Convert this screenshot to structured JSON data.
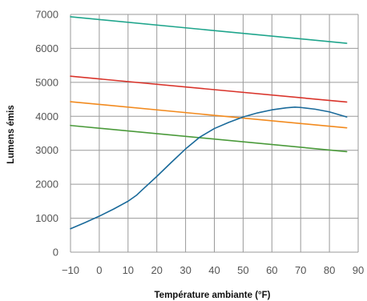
{
  "chart_data": {
    "type": "line",
    "xlabel": "Température ambiante (°F)",
    "ylabel": "Lumens émis",
    "xlim": [
      -10,
      90
    ],
    "ylim": [
      0,
      7000
    ],
    "x_ticks": [
      "−10",
      "0",
      "10",
      "20",
      "30",
      "40",
      "50",
      "60",
      "70",
      "80",
      "90"
    ],
    "y_ticks": [
      "0",
      "1000",
      "2000",
      "3000",
      "4000",
      "5000",
      "6000",
      "7000"
    ],
    "grid": true,
    "legend": "none",
    "series": [
      {
        "color": "#1fa58c",
        "x": [
          -10,
          86
        ],
        "y": [
          6930,
          6150
        ]
      },
      {
        "color": "#d9342b",
        "x": [
          -10,
          86
        ],
        "y": [
          5180,
          4420
        ]
      },
      {
        "color": "#f28a1e",
        "x": [
          -10,
          86
        ],
        "y": [
          4430,
          3660
        ]
      },
      {
        "color": "#4a9a3a",
        "x": [
          -10,
          86
        ],
        "y": [
          3730,
          2960
        ]
      },
      {
        "color": "#1a6a9a",
        "x": [
          -10,
          -5,
          0,
          5,
          10,
          13,
          15,
          20,
          25,
          30,
          35,
          40,
          45,
          50,
          55,
          60,
          65,
          68,
          70,
          75,
          80,
          86
        ],
        "y": [
          690,
          870,
          1060,
          1270,
          1500,
          1680,
          1840,
          2230,
          2640,
          3040,
          3390,
          3640,
          3820,
          3980,
          4100,
          4190,
          4250,
          4270,
          4260,
          4210,
          4130,
          3980
        ]
      }
    ]
  }
}
